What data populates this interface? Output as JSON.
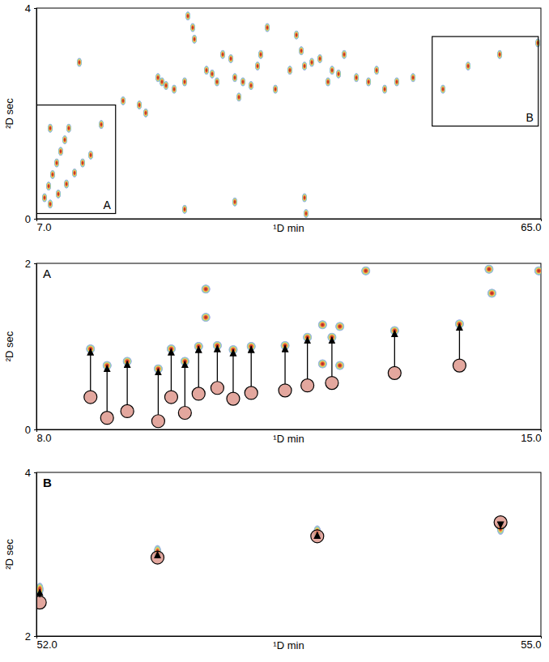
{
  "chart_data": [
    {
      "type": "scatter",
      "xlabel": "¹D min",
      "ylabel": "²D sec",
      "xlim": [
        7,
        65
      ],
      "ylim": [
        0,
        4
      ],
      "xticks": [
        {
          "value": 7,
          "label": "7.0"
        },
        {
          "value": 65,
          "label": "65.0"
        }
      ],
      "yticks": [
        0,
        4
      ],
      "x": [
        7.93,
        8.4,
        8.86,
        9.33,
        9.79,
        10.26,
        10.72,
        8.58,
        9.51,
        10.45,
        11.38,
        12.31,
        13.24,
        14.45,
        8.58,
        11.93,
        16.96,
        18.83,
        19.57,
        20.97,
        21.43,
        21.9,
        22.83,
        24.04,
        24.41,
        24.97,
        25.16,
        26.55,
        27.2,
        27.76,
        28.42,
        29.35,
        29.81,
        30.28,
        30.74,
        31.67,
        32.42,
        32.79,
        33.54,
        34.47,
        36.14,
        36.89,
        37.45,
        37.82,
        38.66,
        39.59,
        40.52,
        40.99,
        41.73,
        42.38,
        43.78,
        45.18,
        46.11,
        47.04,
        48.43,
        50.3,
        53.74,
        56.63,
        60.26,
        64.64,
        24.04,
        37.82,
        38.0,
        29.81
      ],
      "y": [
        0.4,
        0.62,
        0.84,
        1.06,
        1.28,
        1.5,
        1.72,
        0.28,
        0.47,
        0.66,
        0.87,
        1.06,
        1.21,
        1.79,
        1.72,
        2.97,
        2.24,
        2.16,
        2.01,
        2.68,
        2.6,
        2.53,
        2.46,
        2.6,
        3.85,
        3.63,
        3.41,
        2.82,
        2.75,
        2.6,
        3.12,
        3.04,
        2.68,
        2.31,
        2.6,
        2.53,
        2.9,
        3.12,
        3.63,
        2.46,
        2.82,
        3.49,
        3.19,
        2.9,
        2.97,
        3.04,
        2.6,
        2.82,
        2.75,
        3.12,
        2.68,
        2.6,
        2.82,
        2.46,
        2.6,
        2.68,
        2.46,
        2.9,
        3.12,
        3.34,
        0.18,
        0.4,
        0.1,
        0.32
      ],
      "regions": [
        {
          "label": "A",
          "xlim": [
            7.0,
            16.1
          ],
          "ylim": [
            0.1,
            2.16
          ]
        },
        {
          "label": "B",
          "xlim": [
            52.5,
            64.7
          ],
          "ylim": [
            1.76,
            3.46
          ]
        }
      ]
    },
    {
      "type": "scatter",
      "title": "A",
      "xlabel": "¹D min",
      "ylabel": "²D sec",
      "xlim": [
        8,
        15
      ],
      "ylim": [
        0,
        2
      ],
      "xticks": [
        {
          "value": 8,
          "label": "8.0"
        },
        {
          "value": 15,
          "label": "15.0"
        }
      ],
      "yticks": [
        0,
        2
      ],
      "x": [
        12.57,
        10.35,
        10.35,
        14.28,
        14.32,
        14.97,
        11.97,
        12.21,
        11.97,
        12.21
      ],
      "y": [
        1.91,
        1.69,
        1.35,
        1.93,
        1.64,
        1.91,
        1.26,
        1.24,
        0.79,
        0.77
      ],
      "shifts": {
        "x": [
          8.75,
          8.98,
          9.26,
          9.69,
          9.87,
          10.06,
          10.25,
          10.51,
          10.73,
          10.98,
          11.45,
          11.76,
          12.1,
          12.97,
          13.87
        ],
        "y_start": [
          0.39,
          0.14,
          0.22,
          0.1,
          0.39,
          0.2,
          0.43,
          0.5,
          0.37,
          0.44,
          0.47,
          0.53,
          0.56,
          0.68,
          0.77
        ],
        "y_end": [
          0.97,
          0.77,
          0.82,
          0.73,
          0.97,
          0.82,
          1.0,
          1.01,
          0.96,
          1.0,
          1.01,
          1.11,
          1.11,
          1.19,
          1.27
        ]
      }
    },
    {
      "type": "scatter",
      "title": "B",
      "xlabel": "¹D min",
      "ylabel": "²D sec",
      "xlim": [
        52,
        55
      ],
      "ylim": [
        2,
        4
      ],
      "xticks": [
        {
          "value": 52,
          "label": "52.0"
        },
        {
          "value": 55,
          "label": "55.0"
        }
      ],
      "yticks": [
        2,
        4
      ],
      "shifts": {
        "x": [
          52.02,
          52.72,
          53.67,
          54.76
        ],
        "y_start": [
          2.41,
          2.96,
          3.22,
          3.39
        ],
        "y_end": [
          2.57,
          3.03,
          3.27,
          3.32
        ]
      }
    }
  ]
}
